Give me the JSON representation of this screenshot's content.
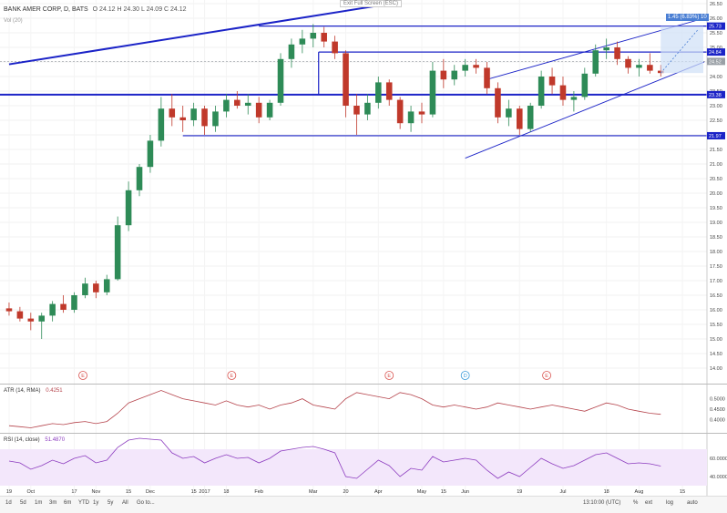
{
  "header": {
    "symbol": "BANK AMER CORP, D, BATS",
    "ohlc": "O 24.12  H 24.30  L 24.09  C 24.12",
    "volume_label": "Vol (20)",
    "exit_fullscreen": "Exit Full Screen (ESC)",
    "measure_label": "1.45 (6.83%) 10"
  },
  "colors": {
    "up": "#2e8b57",
    "down": "#c0392b",
    "trend": "#1b23c7",
    "atr": "#b5434b",
    "rsi": "#8c3cbf",
    "rsi_band": "#f3e7fb",
    "highlight": "#4a7fd4"
  },
  "chart_data": [
    {
      "type": "candlestick",
      "title": "BANK AMER CORP, D, BATS",
      "ylim": [
        13.5,
        26.5
      ],
      "y_ticks": [
        "26.50",
        "26.00",
        "25.50",
        "25.00",
        "24.50",
        "24.00",
        "23.50",
        "23.00",
        "22.50",
        "22.00",
        "21.50",
        "21.00",
        "20.50",
        "20.00",
        "19.50",
        "19.00",
        "18.50",
        "18.00",
        "17.50",
        "17.00",
        "16.50",
        "16.00",
        "15.50",
        "15.00",
        "14.50",
        "14.00"
      ],
      "x_ticks": [
        "19",
        "Oct",
        "17",
        "Nov",
        "15",
        "Dec",
        "15",
        "2017",
        "18",
        "Feb",
        "Mar",
        "20",
        "Apr",
        "May",
        "15",
        "Jun",
        "19",
        "Jul",
        "18",
        "Aug",
        "15"
      ],
      "x_tick_weeks": [
        0,
        2,
        6,
        8,
        11,
        13,
        17,
        18,
        20,
        23,
        28,
        31,
        34,
        38,
        40,
        42,
        47,
        51,
        55,
        58,
        62
      ],
      "price_labels": [
        {
          "text": "25.73",
          "value": 25.73,
          "color": "#1b23c7"
        },
        {
          "text": "24.52",
          "value": 24.52,
          "color": "#9aa0a6"
        },
        {
          "text": "24.84",
          "value": 24.84,
          "color": "#1b23c7"
        },
        {
          "text": "23.38",
          "value": 23.38,
          "color": "#1b23c7"
        },
        {
          "text": "21.97",
          "value": 21.97,
          "color": "#1b23c7"
        }
      ],
      "events": [
        {
          "label": "E",
          "week": 6.8,
          "color": "#d9534f"
        },
        {
          "label": "E",
          "week": 20.5,
          "color": "#d9534f"
        },
        {
          "label": "E",
          "week": 35,
          "color": "#d9534f"
        },
        {
          "label": "D",
          "week": 42,
          "color": "#3a9bd9"
        },
        {
          "label": "E",
          "week": 49.5,
          "color": "#d9534f"
        }
      ],
      "candles_weekly": [
        {
          "o": 16.05,
          "h": 16.25,
          "l": 15.8,
          "c": 15.95
        },
        {
          "o": 15.95,
          "h": 16.1,
          "l": 15.6,
          "c": 15.7
        },
        {
          "o": 15.7,
          "h": 15.9,
          "l": 15.3,
          "c": 15.6
        },
        {
          "o": 15.6,
          "h": 15.9,
          "l": 15.0,
          "c": 15.8
        },
        {
          "o": 15.8,
          "h": 16.3,
          "l": 15.6,
          "c": 16.2
        },
        {
          "o": 16.2,
          "h": 16.5,
          "l": 15.9,
          "c": 16.0
        },
        {
          "o": 16.0,
          "h": 16.6,
          "l": 15.9,
          "c": 16.5
        },
        {
          "o": 16.5,
          "h": 17.1,
          "l": 16.4,
          "c": 16.9
        },
        {
          "o": 16.9,
          "h": 17.0,
          "l": 16.4,
          "c": 16.6
        },
        {
          "o": 16.6,
          "h": 17.2,
          "l": 16.5,
          "c": 17.05
        },
        {
          "o": 17.05,
          "h": 19.2,
          "l": 17.0,
          "c": 18.9
        },
        {
          "o": 18.9,
          "h": 20.4,
          "l": 18.7,
          "c": 20.1
        },
        {
          "o": 20.1,
          "h": 21.0,
          "l": 19.9,
          "c": 20.9
        },
        {
          "o": 20.9,
          "h": 22.0,
          "l": 20.7,
          "c": 21.8
        },
        {
          "o": 21.8,
          "h": 23.3,
          "l": 21.6,
          "c": 22.9
        },
        {
          "o": 22.9,
          "h": 23.4,
          "l": 22.3,
          "c": 22.6
        },
        {
          "o": 22.6,
          "h": 23.0,
          "l": 22.1,
          "c": 22.5
        },
        {
          "o": 22.5,
          "h": 23.1,
          "l": 22.3,
          "c": 22.9
        },
        {
          "o": 22.9,
          "h": 23.0,
          "l": 22.0,
          "c": 22.3
        },
        {
          "o": 22.3,
          "h": 23.0,
          "l": 22.1,
          "c": 22.8
        },
        {
          "o": 22.8,
          "h": 23.4,
          "l": 22.6,
          "c": 23.2
        },
        {
          "o": 23.2,
          "h": 23.5,
          "l": 22.9,
          "c": 23.0
        },
        {
          "o": 23.0,
          "h": 23.4,
          "l": 22.7,
          "c": 23.1
        },
        {
          "o": 23.1,
          "h": 23.3,
          "l": 22.4,
          "c": 22.6
        },
        {
          "o": 22.6,
          "h": 23.2,
          "l": 22.5,
          "c": 23.1
        },
        {
          "o": 23.1,
          "h": 24.8,
          "l": 23.0,
          "c": 24.6
        },
        {
          "o": 24.6,
          "h": 25.3,
          "l": 24.3,
          "c": 25.1
        },
        {
          "o": 25.1,
          "h": 25.6,
          "l": 24.8,
          "c": 25.3
        },
        {
          "o": 25.3,
          "h": 25.8,
          "l": 25.0,
          "c": 25.5
        },
        {
          "o": 25.5,
          "h": 25.7,
          "l": 25.0,
          "c": 25.2
        },
        {
          "o": 25.2,
          "h": 25.4,
          "l": 24.6,
          "c": 24.8
        },
        {
          "o": 24.8,
          "h": 24.9,
          "l": 22.6,
          "c": 23.0
        },
        {
          "o": 23.0,
          "h": 23.4,
          "l": 22.0,
          "c": 22.7
        },
        {
          "o": 22.7,
          "h": 23.4,
          "l": 22.5,
          "c": 23.1
        },
        {
          "o": 23.1,
          "h": 24.0,
          "l": 22.9,
          "c": 23.8
        },
        {
          "o": 23.8,
          "h": 23.9,
          "l": 23.0,
          "c": 23.2
        },
        {
          "o": 23.2,
          "h": 23.3,
          "l": 22.2,
          "c": 22.4
        },
        {
          "o": 22.4,
          "h": 23.0,
          "l": 22.1,
          "c": 22.8
        },
        {
          "o": 22.8,
          "h": 23.1,
          "l": 22.4,
          "c": 22.7
        },
        {
          "o": 22.7,
          "h": 24.5,
          "l": 22.6,
          "c": 24.2
        },
        {
          "o": 24.2,
          "h": 24.6,
          "l": 23.6,
          "c": 23.9
        },
        {
          "o": 23.9,
          "h": 24.4,
          "l": 23.7,
          "c": 24.2
        },
        {
          "o": 24.2,
          "h": 24.6,
          "l": 24.0,
          "c": 24.4
        },
        {
          "o": 24.4,
          "h": 24.6,
          "l": 24.1,
          "c": 24.3
        },
        {
          "o": 24.3,
          "h": 24.5,
          "l": 23.4,
          "c": 23.6
        },
        {
          "o": 23.6,
          "h": 23.8,
          "l": 22.4,
          "c": 22.6
        },
        {
          "o": 22.6,
          "h": 23.2,
          "l": 22.3,
          "c": 22.9
        },
        {
          "o": 22.9,
          "h": 23.0,
          "l": 22.0,
          "c": 22.2
        },
        {
          "o": 22.2,
          "h": 23.1,
          "l": 22.1,
          "c": 23.0
        },
        {
          "o": 23.0,
          "h": 24.2,
          "l": 22.9,
          "c": 24.0
        },
        {
          "o": 24.0,
          "h": 24.3,
          "l": 23.4,
          "c": 23.7
        },
        {
          "o": 23.7,
          "h": 24.0,
          "l": 23.0,
          "c": 23.2
        },
        {
          "o": 23.2,
          "h": 23.5,
          "l": 22.8,
          "c": 23.3
        },
        {
          "o": 23.3,
          "h": 24.3,
          "l": 23.2,
          "c": 24.1
        },
        {
          "o": 24.1,
          "h": 25.1,
          "l": 24.0,
          "c": 24.9
        },
        {
          "o": 24.9,
          "h": 25.3,
          "l": 24.6,
          "c": 25.0
        },
        {
          "o": 25.0,
          "h": 25.2,
          "l": 24.4,
          "c": 24.6
        },
        {
          "o": 24.6,
          "h": 24.7,
          "l": 24.1,
          "c": 24.3
        },
        {
          "o": 24.3,
          "h": 24.6,
          "l": 24.0,
          "c": 24.4
        },
        {
          "o": 24.4,
          "h": 24.8,
          "l": 24.1,
          "c": 24.2
        },
        {
          "o": 24.2,
          "h": 24.4,
          "l": 24.0,
          "c": 24.12
        }
      ],
      "levels": [
        25.73,
        24.84,
        23.38,
        21.97
      ],
      "trendlines": [
        {
          "from": {
            "week": 0,
            "price": 24.42
          },
          "to": {
            "week": 36,
            "price": 26.55
          }
        },
        {
          "from": {
            "week": 42,
            "price": 21.2
          },
          "to": {
            "week": 64,
            "price": 24.5
          }
        },
        {
          "from": {
            "week": 44,
            "price": 23.9
          },
          "to": {
            "week": 64,
            "price": 26.0
          }
        }
      ],
      "short_levels": [
        {
          "price": 25.73,
          "from_week": 23,
          "to_week": 64
        },
        {
          "price": 24.84,
          "from_week": 28.5,
          "to_week": 64
        },
        {
          "price": 21.97,
          "from_week": 16,
          "to_week": 64
        }
      ]
    },
    {
      "type": "line",
      "title": "ATR (14, RMA)",
      "value_text": "0.4251",
      "ylim": [
        0.34,
        0.56
      ],
      "y_ticks": [
        "0.5000",
        "0.4500",
        "0.4000"
      ],
      "values": [
        0.37,
        0.365,
        0.36,
        0.37,
        0.38,
        0.375,
        0.385,
        0.39,
        0.38,
        0.39,
        0.43,
        0.48,
        0.5,
        0.52,
        0.54,
        0.52,
        0.5,
        0.49,
        0.48,
        0.47,
        0.49,
        0.47,
        0.46,
        0.47,
        0.45,
        0.47,
        0.48,
        0.5,
        0.47,
        0.46,
        0.45,
        0.5,
        0.53,
        0.52,
        0.51,
        0.5,
        0.53,
        0.52,
        0.5,
        0.47,
        0.46,
        0.47,
        0.46,
        0.45,
        0.46,
        0.48,
        0.47,
        0.46,
        0.45,
        0.46,
        0.47,
        0.46,
        0.45,
        0.44,
        0.46,
        0.48,
        0.47,
        0.45,
        0.44,
        0.43,
        0.425
      ]
    },
    {
      "type": "line",
      "title": "RSI (14, close)",
      "value_text": "51.4870",
      "ylim": [
        25,
        85
      ],
      "y_ticks": [
        "60.0000",
        "40.0000"
      ],
      "band": [
        30,
        70
      ],
      "values": [
        57,
        55,
        48,
        52,
        58,
        54,
        60,
        63,
        55,
        58,
        72,
        80,
        82,
        81,
        80,
        66,
        60,
        62,
        55,
        60,
        64,
        60,
        61,
        55,
        60,
        68,
        70,
        72,
        73,
        70,
        66,
        40,
        38,
        48,
        58,
        52,
        40,
        49,
        47,
        62,
        56,
        58,
        60,
        58,
        47,
        38,
        45,
        40,
        50,
        60,
        54,
        49,
        52,
        58,
        64,
        66,
        60,
        54,
        55,
        54,
        51.5
      ]
    }
  ],
  "time_ranges": [
    "1d",
    "5d",
    "1m",
    "3m",
    "6m",
    "YTD",
    "1y",
    "5y",
    "All",
    "Go to..."
  ],
  "clock": "13:10:00 (UTC)",
  "footer_toggles": [
    "%",
    "ext",
    "log",
    "auto"
  ]
}
